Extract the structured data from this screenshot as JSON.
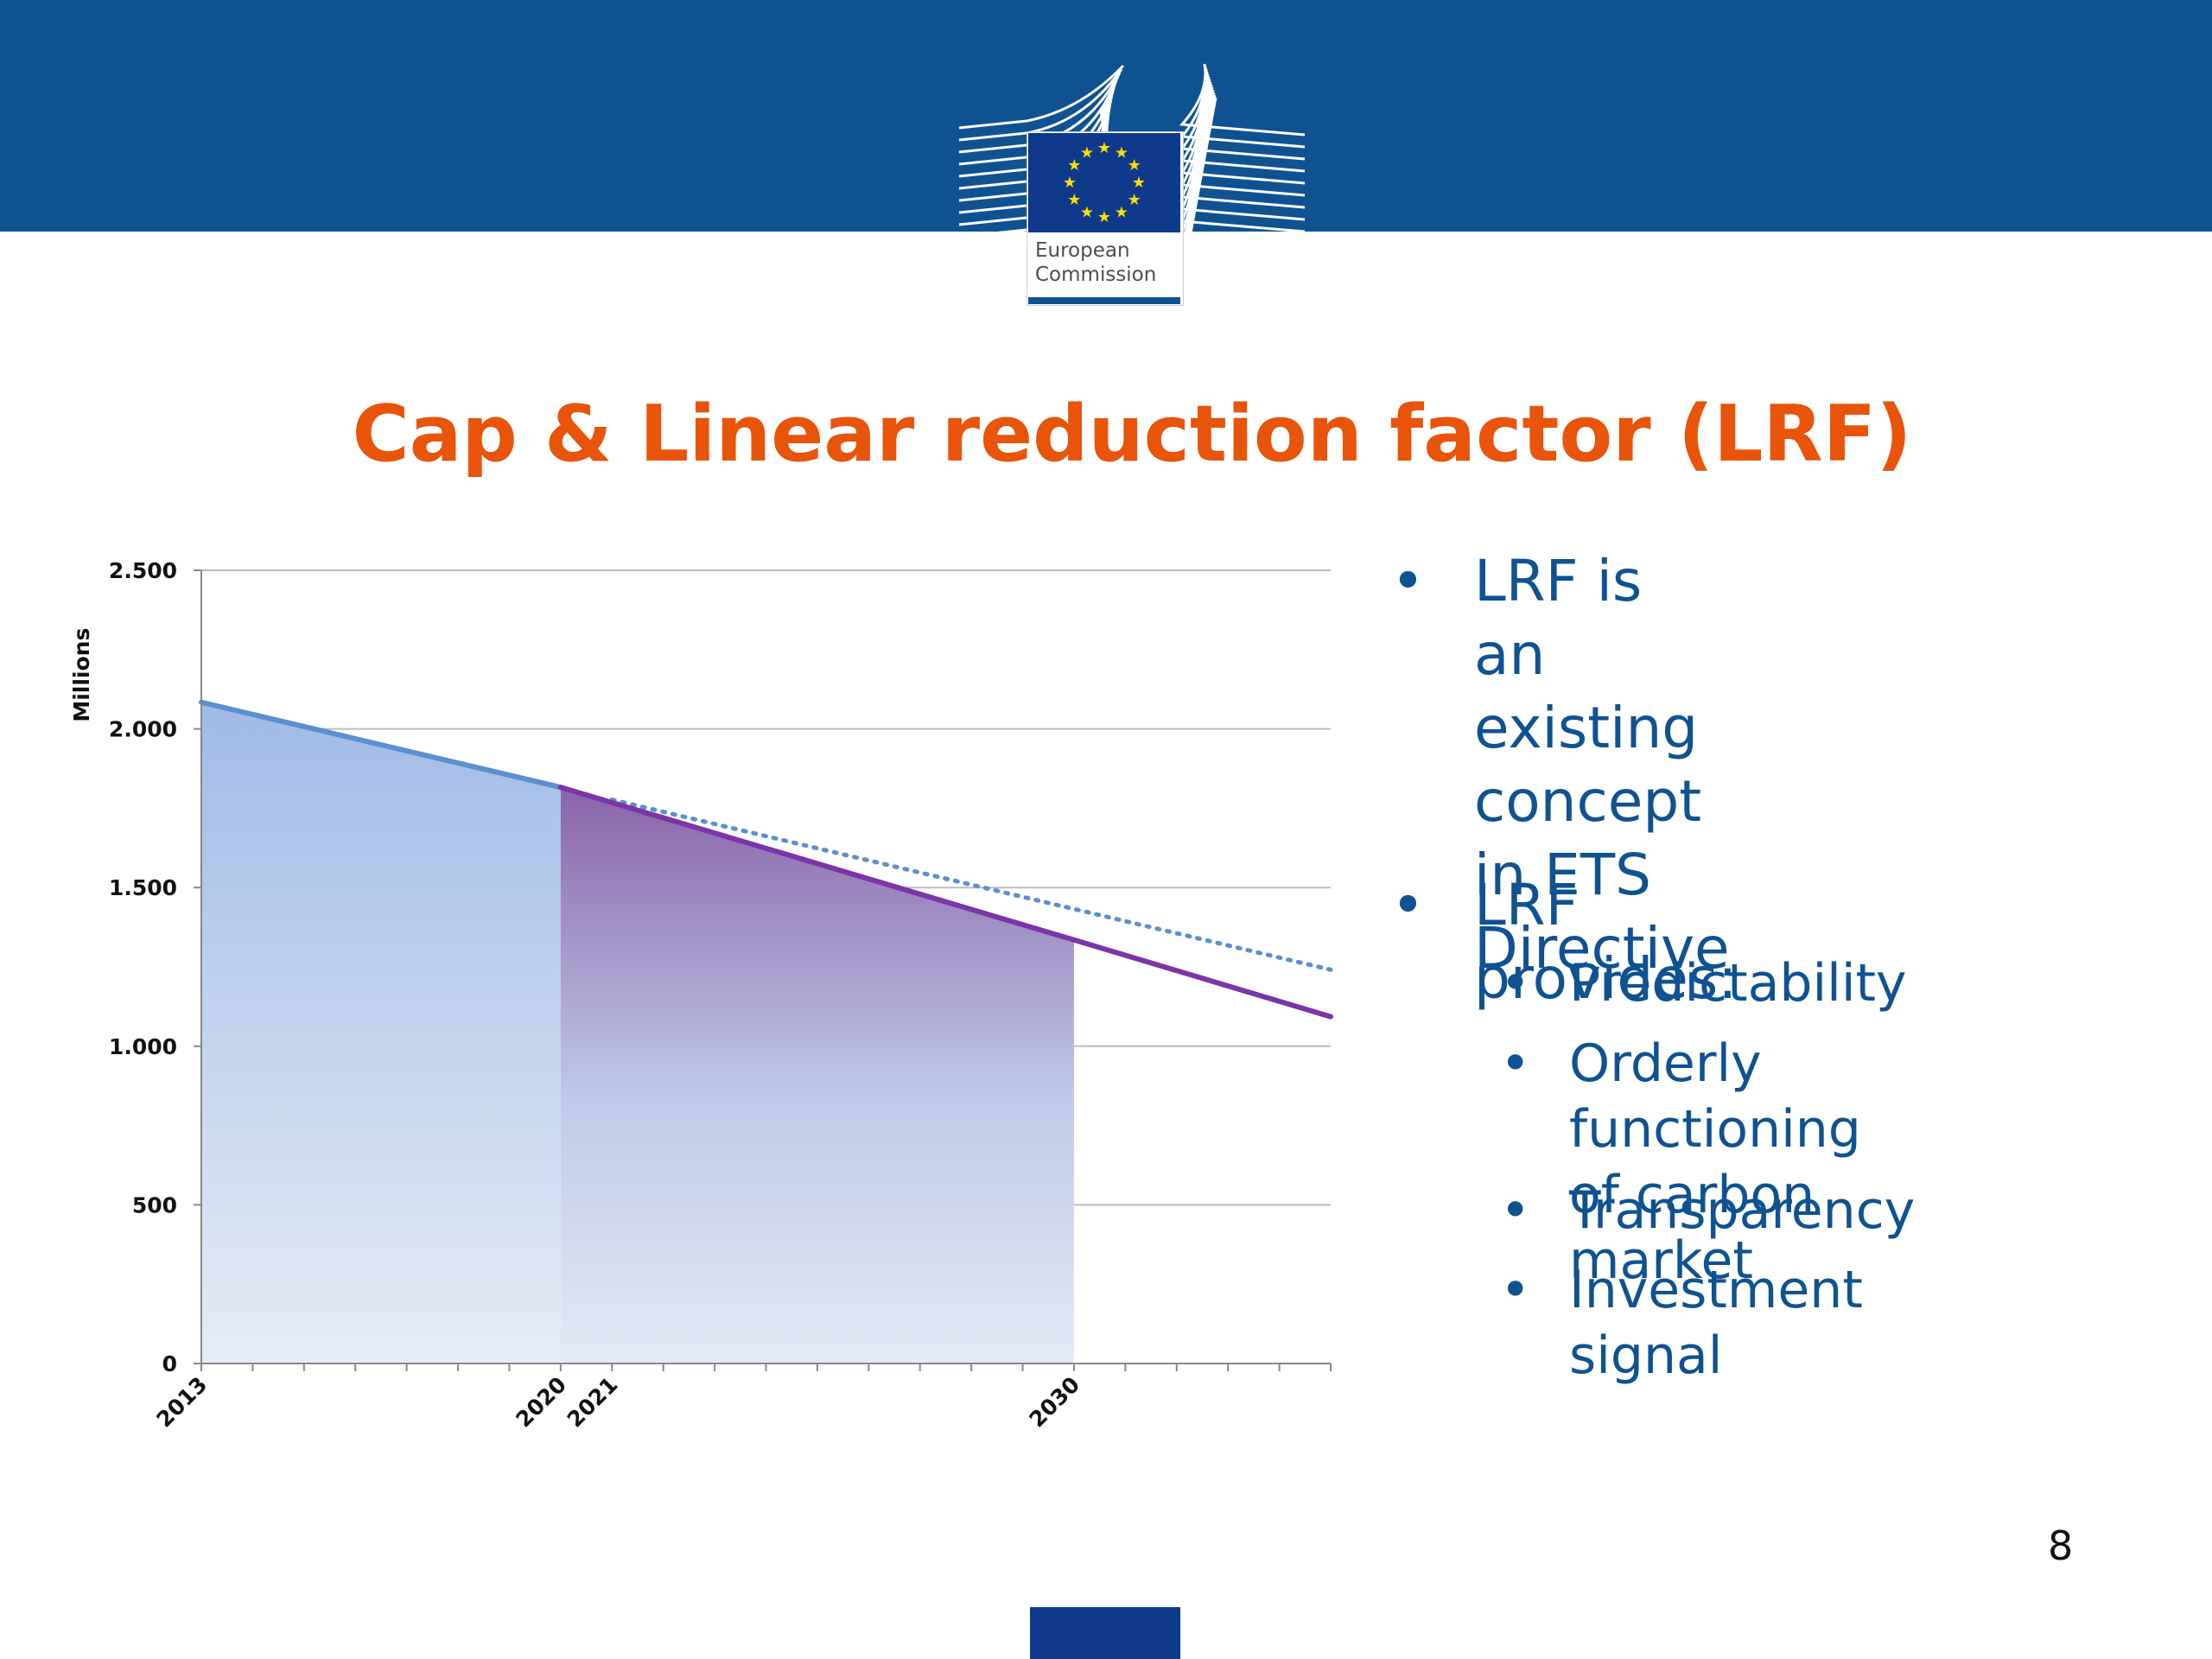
{
  "logo": {
    "line1": "European",
    "line2": "Commission"
  },
  "slide": {
    "title": "Cap & Linear reduction factor (LRF)",
    "page_number": "8"
  },
  "bullets": {
    "b1_lines": [
      "LRF is an existing",
      "concept in ETS",
      "Directive"
    ],
    "b2": "LRF provides:",
    "sub": [
      "Predictability",
      "Orderly functioning",
      "of carbon market",
      "Transparency",
      "Investment signal"
    ]
  },
  "colors": {
    "header": "#0f5292",
    "title": "#e8540a",
    "text": "#0f5292",
    "cap_line": "#5b8fcf",
    "lrf_line": "#7b35a8",
    "dotted": "#5b8fcf"
  },
  "chart_data": {
    "type": "area",
    "ylabel": "Millions",
    "ylim": [
      0,
      2500
    ],
    "yticks": [
      0,
      500,
      1000,
      1500,
      2000,
      2500
    ],
    "ytick_labels": [
      "0",
      "500",
      "1.000",
      "1.500",
      "2.000",
      "2.500"
    ],
    "xlim": [
      2013,
      2035
    ],
    "xtick_labels": [
      "2013",
      "2020",
      "2021",
      "2030"
    ],
    "grid": true,
    "series": [
      {
        "x": [
          2013,
          2020
        ],
        "y": [
          2084,
          1816
        ]
      },
      {
        "x": [
          2020,
          2030
        ],
        "y": [
          1816,
          1335
        ]
      },
      {
        "x": [
          2030,
          2035
        ],
        "y": [
          1335,
          1093
        ]
      },
      {
        "x": [
          2021,
          2035
        ],
        "y": [
          1777,
          1241
        ]
      }
    ]
  }
}
